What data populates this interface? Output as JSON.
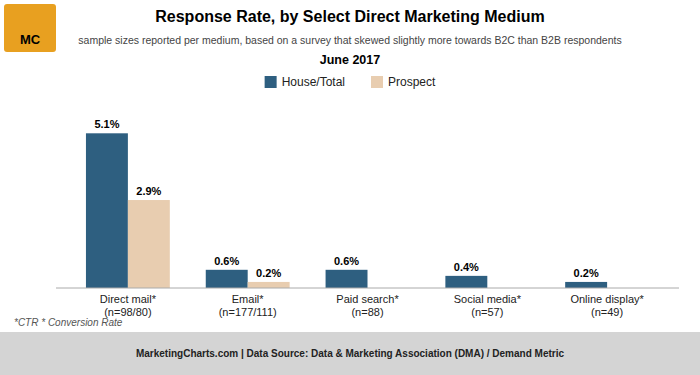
{
  "chart_data": {
    "type": "bar",
    "title": "Response Rate, by Select Direct Marketing Medium",
    "subtitle": "sample sizes reported per medium, based on a survey that skewed slightly more towards B2C than B2B respondents",
    "annotations": [
      "June 2017",
      "*CTR * Conversion Rate",
      "MarketingCharts.com | Data Source: Data & Marketing Association (DMA) / Demand Metric",
      "MC"
    ],
    "categories": [
      "Direct mail*\n(n=98/80)",
      "Email*\n(n=177/111)",
      "Paid search*\n(n=88)",
      "Social media*\n(n=57)",
      "Online display*\n(n=49)"
    ],
    "series": [
      {
        "name": "House/Total",
        "color": "#2e5f80",
        "values": [
          5.1,
          0.6,
          0.6,
          0.4,
          0.2
        ],
        "value_labels": [
          "5.1%",
          "0.6%",
          "0.6%",
          "0.4%",
          "0.2%"
        ]
      },
      {
        "name": "Prospect",
        "color": "#e8cdb0",
        "values": [
          2.9,
          0.2,
          null,
          null,
          null
        ],
        "value_labels": [
          "2.9%",
          "0.2%",
          null,
          null,
          null
        ]
      }
    ],
    "ylim": [
      0,
      6.0
    ],
    "grid": false,
    "legend": "top",
    "data_labels": true,
    "tick_labels": "x"
  }
}
